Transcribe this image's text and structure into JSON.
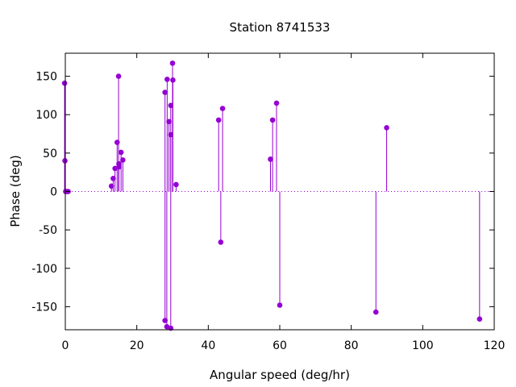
{
  "chart_data": {
    "type": "scatter",
    "style": "impulses-with-points",
    "title": "Station 8741533",
    "xlabel": "Angular speed (deg/hr)",
    "ylabel": "Phase (deg)",
    "xlim": [
      0,
      120
    ],
    "ylim": [
      -180,
      180
    ],
    "xticks": [
      0,
      20,
      40,
      60,
      80,
      100,
      120
    ],
    "yticks": [
      -150,
      -100,
      -50,
      0,
      50,
      100,
      150
    ],
    "zero_line": true,
    "grid": false,
    "legend": "none",
    "series": [
      {
        "color": "#9400d3",
        "points": [
          {
            "x": -0.2,
            "y": 141
          },
          {
            "x": -0.1,
            "y": 40
          },
          {
            "x": 0.1,
            "y": 0
          },
          {
            "x": 0.6,
            "y": 0
          },
          {
            "x": 0.8,
            "y": 0
          },
          {
            "x": 12.9,
            "y": 7
          },
          {
            "x": 13.4,
            "y": 17
          },
          {
            "x": 13.9,
            "y": 30
          },
          {
            "x": 14.5,
            "y": 64
          },
          {
            "x": 14.9,
            "y": 150
          },
          {
            "x": 15.0,
            "y": 32
          },
          {
            "x": 15.0,
            "y": 36
          },
          {
            "x": 15.6,
            "y": 51
          },
          {
            "x": 16.1,
            "y": 41
          },
          {
            "x": 27.9,
            "y": 129
          },
          {
            "x": 27.9,
            "y": -168
          },
          {
            "x": 28.4,
            "y": -176
          },
          {
            "x": 28.5,
            "y": 146
          },
          {
            "x": 29.0,
            "y": 91
          },
          {
            "x": 29.5,
            "y": 112
          },
          {
            "x": 29.5,
            "y": -178
          },
          {
            "x": 29.5,
            "y": 74
          },
          {
            "x": 30.0,
            "y": 167
          },
          {
            "x": 30.1,
            "y": 145
          },
          {
            "x": 31.0,
            "y": 9
          },
          {
            "x": 42.9,
            "y": 93
          },
          {
            "x": 43.5,
            "y": -66
          },
          {
            "x": 44.0,
            "y": 108
          },
          {
            "x": 57.4,
            "y": 42
          },
          {
            "x": 58.0,
            "y": 93
          },
          {
            "x": 59.1,
            "y": 115
          },
          {
            "x": 60.0,
            "y": -148
          },
          {
            "x": 86.9,
            "y": -157
          },
          {
            "x": 89.9,
            "y": 83
          },
          {
            "x": 115.9,
            "y": -166
          }
        ]
      }
    ]
  }
}
